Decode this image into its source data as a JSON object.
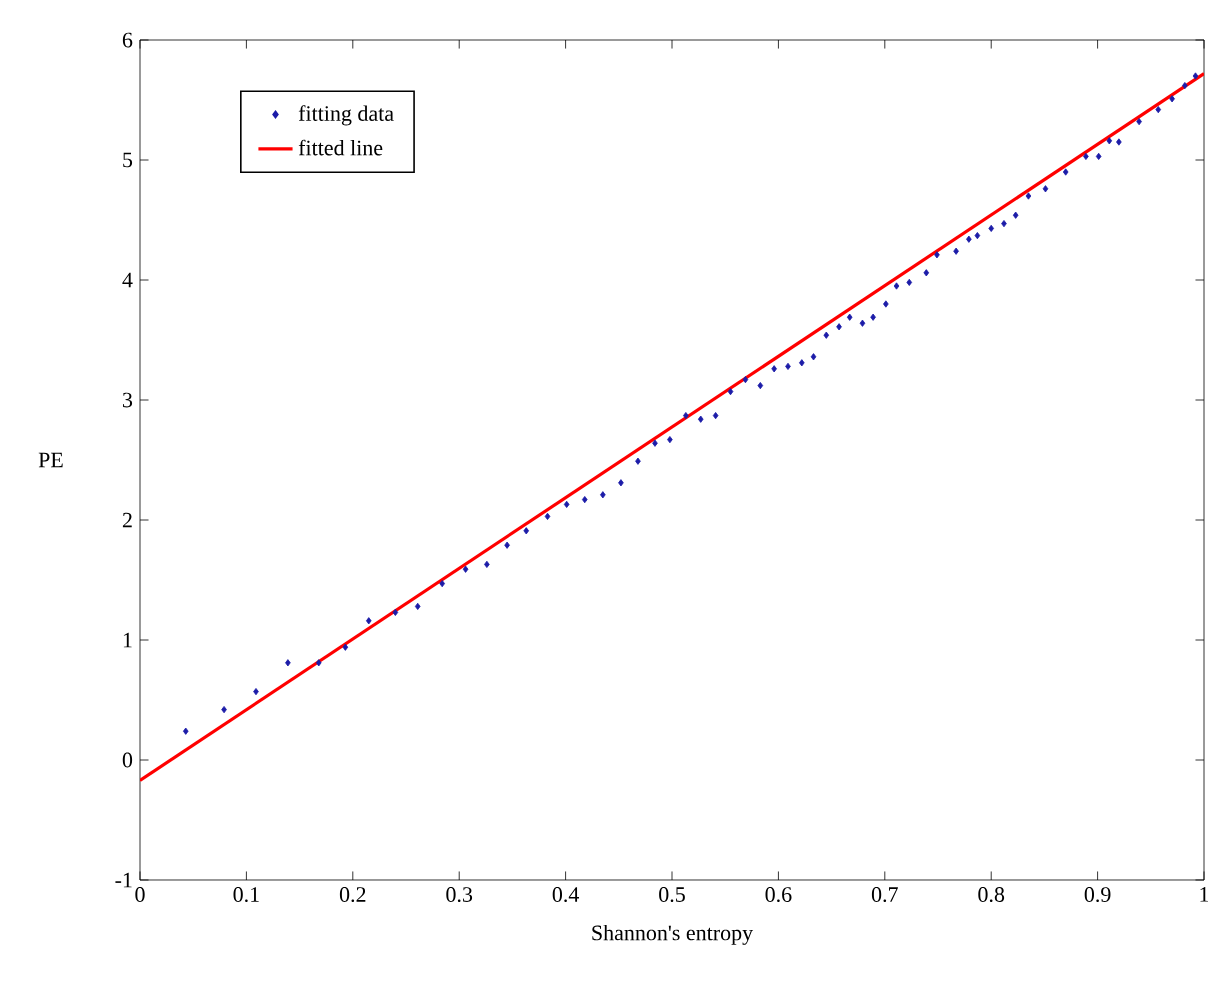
{
  "chart_data": {
    "type": "scatter",
    "xlabel": "Shannon's entropy",
    "ylabel": "PE",
    "xlim": [
      0,
      1
    ],
    "ylim": [
      -1,
      6
    ],
    "xticks": [
      0,
      0.1,
      0.2,
      0.3,
      0.4,
      0.5,
      0.6,
      0.7,
      0.8,
      0.9,
      1
    ],
    "yticks": [
      -1,
      0,
      1,
      2,
      3,
      4,
      5,
      6
    ],
    "legend": "top left",
    "grid": false,
    "series": [
      {
        "name": "fitting data",
        "marker": "diamond",
        "color": "#1c1ca8",
        "x": [
          0.043,
          0.079,
          0.109,
          0.139,
          0.168,
          0.193,
          0.215,
          0.24,
          0.261,
          0.284,
          0.306,
          0.326,
          0.345,
          0.363,
          0.383,
          0.401,
          0.418,
          0.435,
          0.452,
          0.468,
          0.484,
          0.498,
          0.513,
          0.527,
          0.541,
          0.555,
          0.569,
          0.583,
          0.596,
          0.609,
          0.622,
          0.633,
          0.645,
          0.657,
          0.667,
          0.679,
          0.689,
          0.701,
          0.711,
          0.723,
          0.739,
          0.749,
          0.767,
          0.779,
          0.787,
          0.8,
          0.812,
          0.823,
          0.835,
          0.851,
          0.87,
          0.889,
          0.901,
          0.911,
          0.92,
          0.939,
          0.957,
          0.97,
          0.982,
          0.992
        ],
        "values": [
          0.24,
          0.42,
          0.57,
          0.81,
          0.81,
          0.94,
          1.16,
          1.23,
          1.28,
          1.47,
          1.59,
          1.63,
          1.79,
          1.91,
          2.03,
          2.13,
          2.17,
          2.21,
          2.31,
          2.49,
          2.64,
          2.67,
          2.87,
          2.84,
          2.87,
          3.07,
          3.17,
          3.12,
          3.26,
          3.28,
          3.31,
          3.36,
          3.54,
          3.61,
          3.69,
          3.64,
          3.69,
          3.8,
          3.95,
          3.98,
          4.06,
          4.21,
          4.24,
          4.34,
          4.37,
          4.43,
          4.47,
          4.54,
          4.7,
          4.76,
          4.9,
          5.03,
          5.03,
          5.16,
          5.15,
          5.32,
          5.42,
          5.51,
          5.62,
          5.7
        ]
      },
      {
        "name": "fitted line",
        "type": "line",
        "marker": "none",
        "color": "#ff0000",
        "x": [
          0,
          1
        ],
        "values": [
          -0.17,
          5.72
        ]
      }
    ]
  }
}
